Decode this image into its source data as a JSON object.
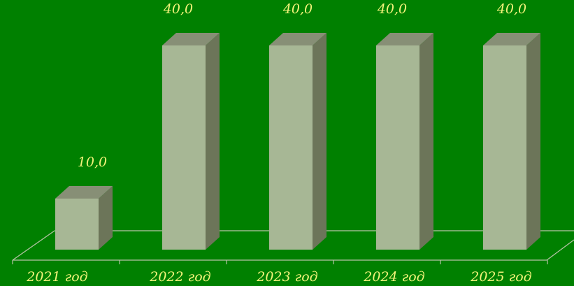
{
  "chart_data": {
    "type": "bar",
    "style": "3d-column",
    "categories": [
      "2021 год",
      "2022 год",
      "2023 год",
      "2024 год",
      "2025 год"
    ],
    "values": [
      10.0,
      40.0,
      40.0,
      40.0,
      40.0
    ],
    "value_labels": [
      "10,0",
      "40,0",
      "40,0",
      "40,0",
      "40,0"
    ],
    "title": "",
    "xlabel": "",
    "ylabel": "",
    "ylim": [
      0,
      40
    ],
    "grid": false,
    "legend": "none",
    "colors": {
      "background": "#008000",
      "bar_front": "#A7B795",
      "bar_side": "#6C7559",
      "bar_top": "#878F76",
      "value_label": "#F2F27A",
      "axis_label": "#F2F27A",
      "floor_line": "#B8C4A8"
    }
  }
}
